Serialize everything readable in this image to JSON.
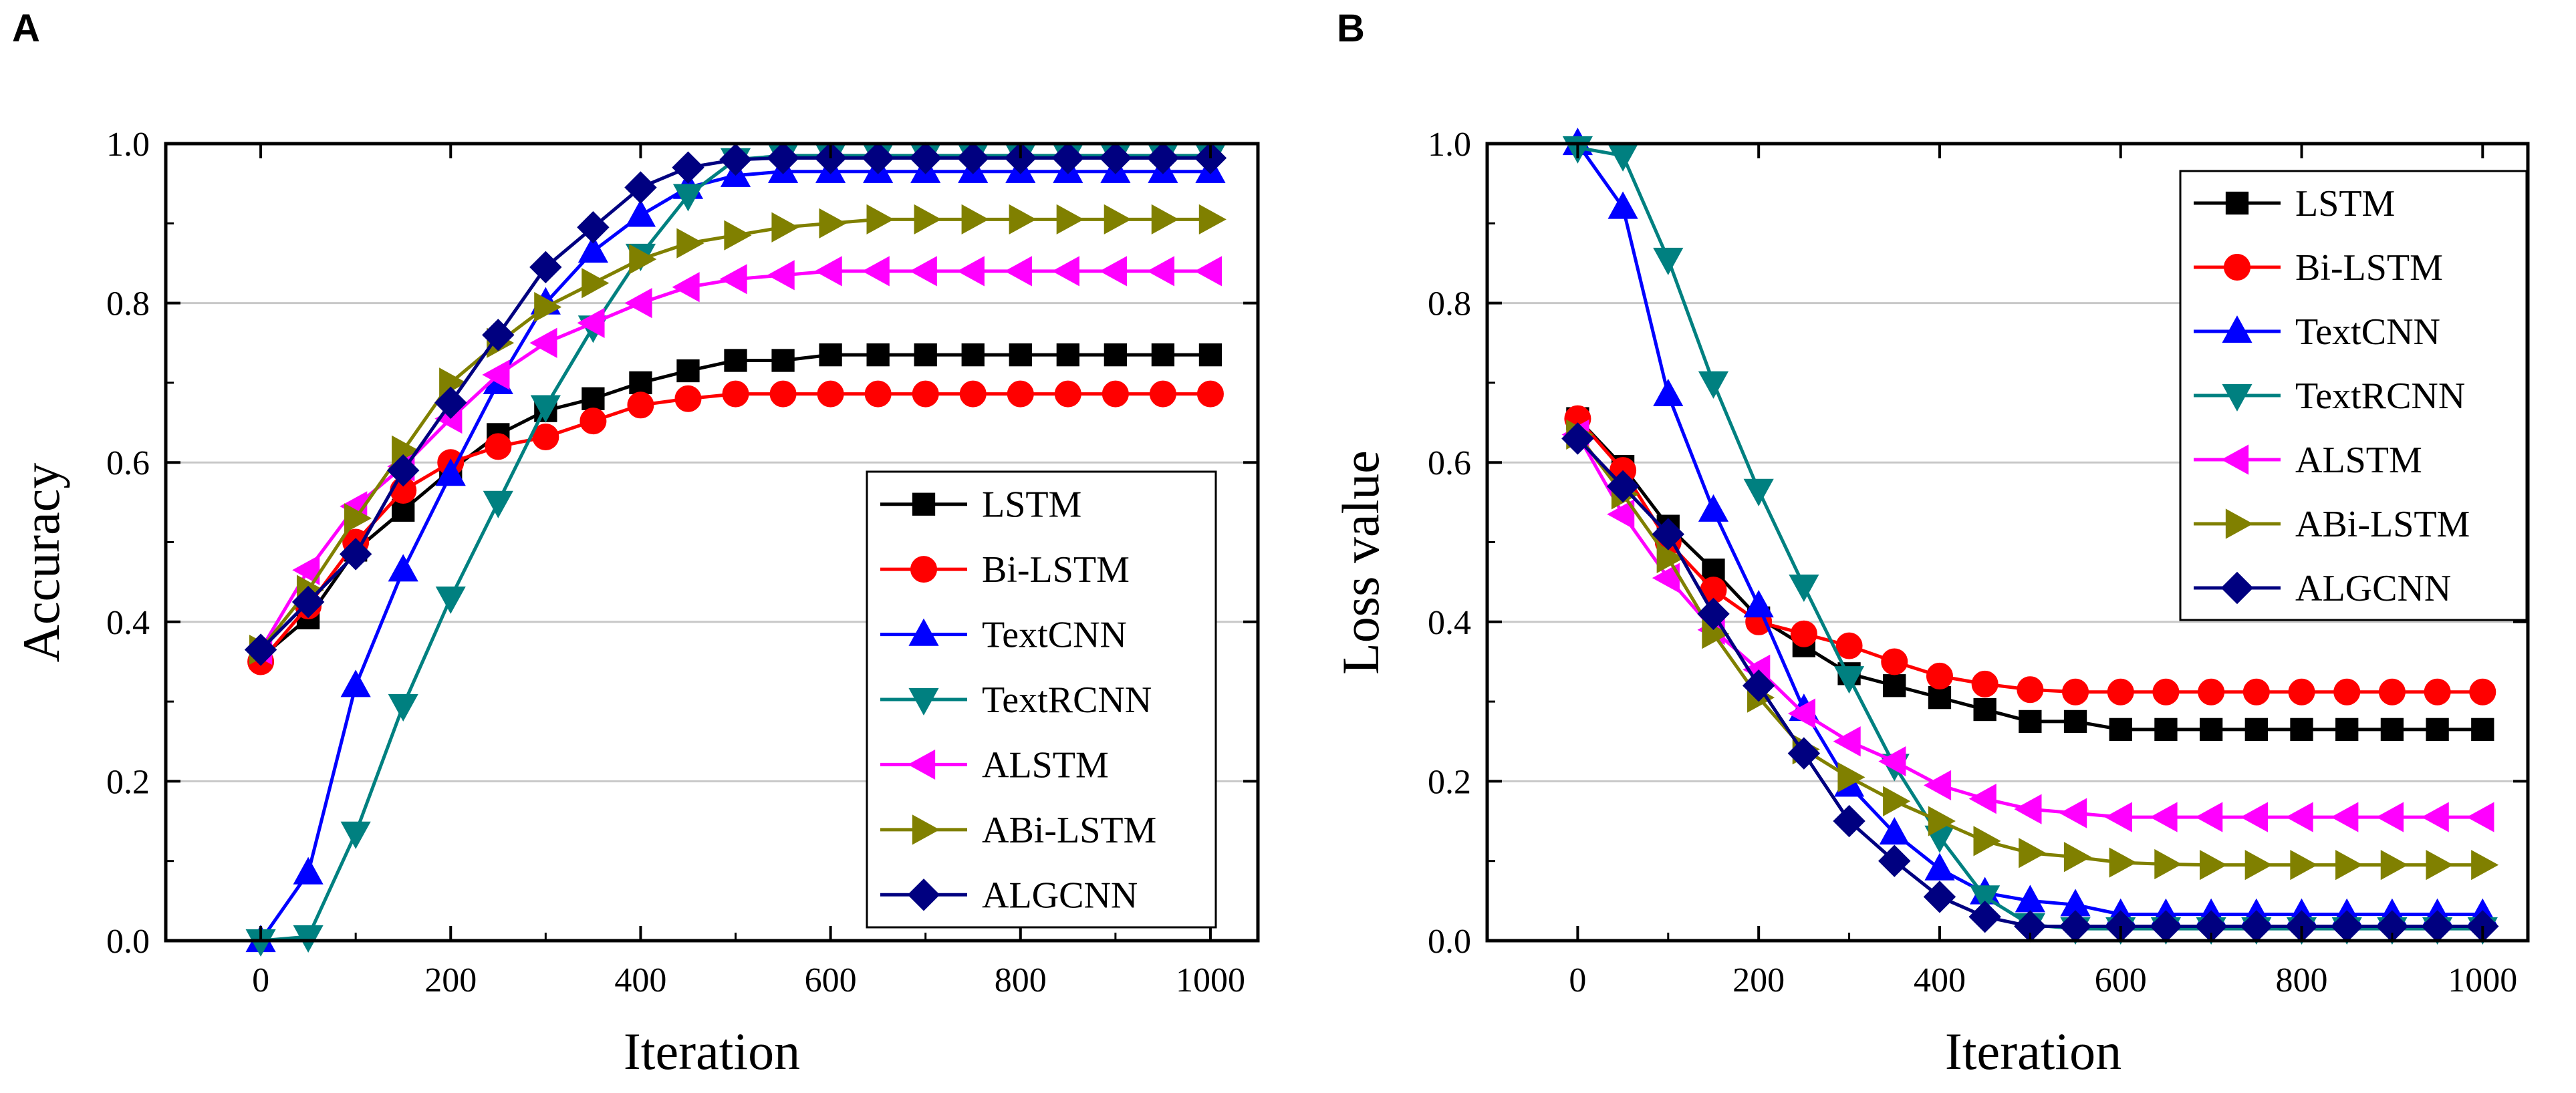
{
  "chart_data": [
    {
      "type": "line",
      "panel": "A",
      "title": "",
      "xlabel": "Iteration",
      "ylabel": "Accuracy",
      "xlim": [
        -100,
        1050
      ],
      "ylim": [
        0,
        1.0
      ],
      "xticks": [
        0,
        200,
        400,
        600,
        800,
        1000
      ],
      "yticks": [
        0.0,
        0.2,
        0.4,
        0.6,
        0.8,
        1.0
      ],
      "xtick_labels": [
        "0",
        "200",
        "400",
        "600",
        "800",
        "1000"
      ],
      "ytick_labels": [
        "0.0",
        "0.2",
        "0.4",
        "0.6",
        "0.8",
        "1.0"
      ],
      "grid": "horizontal",
      "legend_position": "bottom-right",
      "x": [
        0,
        50,
        100,
        150,
        200,
        250,
        300,
        350,
        400,
        450,
        500,
        550,
        600,
        650,
        700,
        750,
        800,
        850,
        900,
        950,
        1000
      ],
      "series": [
        {
          "name": "LSTM",
          "color": "#000000",
          "marker": "square",
          "values": [
            0.355,
            0.405,
            0.49,
            0.54,
            0.59,
            0.635,
            0.665,
            0.68,
            0.7,
            0.715,
            0.728,
            0.728,
            0.735,
            0.735,
            0.735,
            0.735,
            0.735,
            0.735,
            0.735,
            0.735,
            0.735
          ]
        },
        {
          "name": "Bi-LSTM",
          "color": "#ff0000",
          "marker": "circle",
          "values": [
            0.35,
            0.42,
            0.5,
            0.565,
            0.6,
            0.62,
            0.632,
            0.652,
            0.672,
            0.68,
            0.686,
            0.686,
            0.686,
            0.686,
            0.686,
            0.686,
            0.686,
            0.686,
            0.686,
            0.686,
            0.686
          ]
        },
        {
          "name": "TextCNN",
          "color": "#0000ff",
          "marker": "triangle-up",
          "values": [
            0.0,
            0.085,
            0.32,
            0.465,
            0.585,
            0.7,
            0.8,
            0.865,
            0.91,
            0.945,
            0.96,
            0.965,
            0.965,
            0.965,
            0.965,
            0.965,
            0.965,
            0.965,
            0.965,
            0.965,
            0.965
          ]
        },
        {
          "name": "TextRCNN",
          "color": "#008080",
          "marker": "triangle-down",
          "values": [
            0.0,
            0.005,
            0.135,
            0.295,
            0.43,
            0.55,
            0.67,
            0.77,
            0.86,
            0.935,
            0.98,
            0.985,
            0.985,
            0.985,
            0.985,
            0.985,
            0.985,
            0.985,
            0.985,
            0.985,
            0.985
          ]
        },
        {
          "name": "ALSTM",
          "color": "#ff00ff",
          "marker": "triangle-left",
          "values": [
            0.365,
            0.465,
            0.545,
            0.595,
            0.655,
            0.71,
            0.75,
            0.775,
            0.8,
            0.82,
            0.83,
            0.835,
            0.84,
            0.84,
            0.84,
            0.84,
            0.84,
            0.84,
            0.84,
            0.84,
            0.84
          ]
        },
        {
          "name": "ABi-LSTM",
          "color": "#808000",
          "marker": "triangle-right",
          "values": [
            0.365,
            0.44,
            0.53,
            0.615,
            0.7,
            0.75,
            0.795,
            0.825,
            0.855,
            0.875,
            0.885,
            0.895,
            0.9,
            0.905,
            0.905,
            0.905,
            0.905,
            0.905,
            0.905,
            0.905,
            0.905
          ]
        },
        {
          "name": "ALGCNN",
          "color": "#000080",
          "marker": "diamond",
          "values": [
            0.365,
            0.425,
            0.485,
            0.59,
            0.675,
            0.76,
            0.845,
            0.895,
            0.945,
            0.97,
            0.98,
            0.982,
            0.982,
            0.982,
            0.982,
            0.982,
            0.982,
            0.982,
            0.982,
            0.982,
            0.982
          ]
        }
      ]
    },
    {
      "type": "line",
      "panel": "B",
      "title": "",
      "xlabel": "Iteration",
      "ylabel": "Loss value",
      "xlim": [
        -100,
        1050
      ],
      "ylim": [
        0,
        1.0
      ],
      "xticks": [
        0,
        200,
        400,
        600,
        800,
        1000
      ],
      "yticks": [
        0.0,
        0.2,
        0.4,
        0.6,
        0.8,
        1.0
      ],
      "xtick_labels": [
        "0",
        "200",
        "400",
        "600",
        "800",
        "1000"
      ],
      "ytick_labels": [
        "0.0",
        "0.2",
        "0.4",
        "0.6",
        "0.8",
        "1.0"
      ],
      "grid": "horizontal",
      "legend_position": "top-right",
      "x": [
        0,
        50,
        100,
        150,
        200,
        250,
        300,
        350,
        400,
        450,
        500,
        550,
        600,
        650,
        700,
        750,
        800,
        850,
        900,
        950,
        1000
      ],
      "series": [
        {
          "name": "LSTM",
          "color": "#000000",
          "marker": "square",
          "values": [
            0.655,
            0.595,
            0.52,
            0.465,
            0.405,
            0.37,
            0.335,
            0.32,
            0.305,
            0.29,
            0.275,
            0.275,
            0.265,
            0.265,
            0.265,
            0.265,
            0.265,
            0.265,
            0.265,
            0.265,
            0.265
          ]
        },
        {
          "name": "Bi-LSTM",
          "color": "#ff0000",
          "marker": "circle",
          "values": [
            0.655,
            0.59,
            0.5,
            0.44,
            0.4,
            0.385,
            0.37,
            0.35,
            0.332,
            0.322,
            0.315,
            0.312,
            0.312,
            0.312,
            0.312,
            0.312,
            0.312,
            0.312,
            0.312,
            0.312,
            0.312
          ]
        },
        {
          "name": "TextCNN",
          "color": "#0000ff",
          "marker": "triangle-up",
          "values": [
            1.0,
            0.92,
            0.685,
            0.54,
            0.42,
            0.29,
            0.195,
            0.135,
            0.09,
            0.06,
            0.05,
            0.045,
            0.033,
            0.033,
            0.033,
            0.033,
            0.033,
            0.033,
            0.033,
            0.033,
            0.033
          ]
        },
        {
          "name": "TextRCNN",
          "color": "#008080",
          "marker": "triangle-down",
          "values": [
            0.995,
            0.985,
            0.855,
            0.7,
            0.565,
            0.445,
            0.33,
            0.22,
            0.13,
            0.055,
            0.02,
            0.015,
            0.015,
            0.015,
            0.015,
            0.015,
            0.015,
            0.015,
            0.015,
            0.015,
            0.015
          ]
        },
        {
          "name": "ALSTM",
          "color": "#ff00ff",
          "marker": "triangle-left",
          "values": [
            0.635,
            0.535,
            0.455,
            0.39,
            0.34,
            0.285,
            0.25,
            0.225,
            0.195,
            0.178,
            0.165,
            0.16,
            0.155,
            0.155,
            0.155,
            0.155,
            0.155,
            0.155,
            0.155,
            0.155,
            0.155
          ]
        },
        {
          "name": "ABi-LSTM",
          "color": "#808000",
          "marker": "triangle-right",
          "values": [
            0.635,
            0.56,
            0.48,
            0.385,
            0.305,
            0.24,
            0.205,
            0.175,
            0.15,
            0.125,
            0.11,
            0.105,
            0.098,
            0.096,
            0.095,
            0.095,
            0.095,
            0.095,
            0.095,
            0.095,
            0.095
          ]
        },
        {
          "name": "ALGCNN",
          "color": "#000080",
          "marker": "diamond",
          "values": [
            0.63,
            0.57,
            0.51,
            0.41,
            0.32,
            0.235,
            0.15,
            0.1,
            0.055,
            0.03,
            0.018,
            0.018,
            0.018,
            0.018,
            0.018,
            0.018,
            0.018,
            0.018,
            0.018,
            0.018,
            0.018
          ]
        }
      ]
    }
  ]
}
